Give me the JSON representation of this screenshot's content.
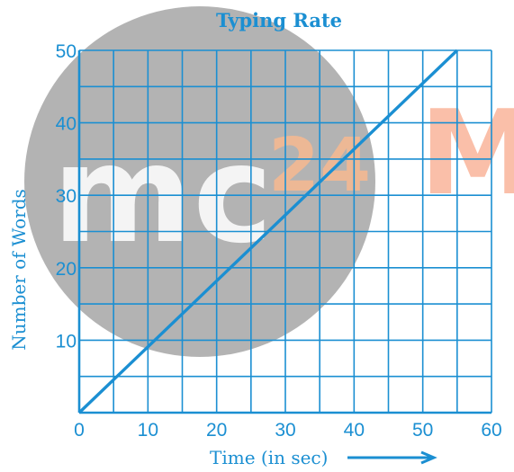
{
  "watermark": {
    "text_main": "mc",
    "text_number": "24",
    "text_side": "M",
    "circle_color": "#9e9e9e",
    "number_color": "#f7b98f",
    "side_color": "#f58a63"
  },
  "colors": {
    "accent": "#1b8fd2",
    "grid": "#1b8fd2"
  },
  "chart_data": {
    "type": "line",
    "title": "Typing Rate",
    "xlabel": "Time (in sec)",
    "ylabel": "Number of Words",
    "xlim": [
      0,
      60
    ],
    "ylim": [
      0,
      50
    ],
    "x_ticks": [
      0,
      10,
      20,
      30,
      40,
      50,
      60
    ],
    "y_ticks": [
      10,
      20,
      30,
      40,
      50
    ],
    "x_grid_step": 5,
    "y_grid_step": 5,
    "grid": true,
    "series": [
      {
        "x": [
          0,
          55
        ],
        "y": [
          0,
          50
        ]
      }
    ]
  }
}
